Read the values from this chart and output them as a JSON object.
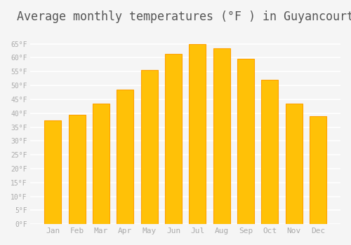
{
  "title": "Average monthly temperatures (°F ) in Guyancourt",
  "months": [
    "Jan",
    "Feb",
    "Mar",
    "Apr",
    "May",
    "Jun",
    "Jul",
    "Aug",
    "Sep",
    "Oct",
    "Nov",
    "Dec"
  ],
  "values": [
    37.5,
    39.5,
    43.5,
    48.5,
    55.5,
    61.5,
    65.0,
    63.5,
    59.5,
    52.0,
    43.5,
    39.0
  ],
  "bar_color": "#FFC107",
  "bar_edge_color": "#FFA000",
  "background_color": "#F5F5F5",
  "grid_color": "#FFFFFF",
  "text_color": "#AAAAAA",
  "ylim": [
    0,
    70
  ],
  "yticks": [
    0,
    5,
    10,
    15,
    20,
    25,
    30,
    35,
    40,
    45,
    50,
    55,
    60,
    65
  ],
  "title_fontsize": 12
}
